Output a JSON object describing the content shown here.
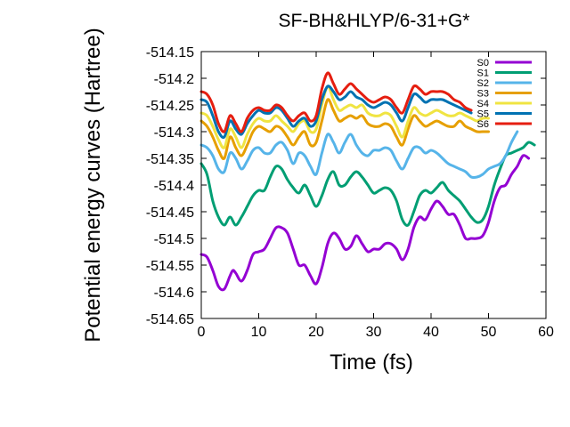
{
  "chart_data": {
    "type": "line",
    "title": "SF-BH&HLYP/6-31+G*",
    "xlabel": "Time (fs)",
    "ylabel": "Potential energy curves (Hartree)",
    "xlim": [
      0,
      60
    ],
    "ylim": [
      -514.65,
      -514.15
    ],
    "xticks": [
      "0",
      "10",
      "20",
      "30",
      "40",
      "50",
      "60"
    ],
    "yticks": [
      "-514.15",
      "-514.2",
      "-514.25",
      "-514.3",
      "-514.35",
      "-514.4",
      "-514.45",
      "-514.5",
      "-514.55",
      "-514.6",
      "-514.65"
    ],
    "legend_position": "top-right",
    "grid": false,
    "series": [
      {
        "name": "S0",
        "color": "#9400d3",
        "x": [
          0,
          1,
          2,
          3,
          4,
          5,
          5.5,
          6,
          7,
          8,
          9,
          10,
          11,
          12,
          13,
          14,
          15,
          16,
          17,
          18,
          19,
          20,
          21,
          22,
          23,
          24,
          25,
          26,
          27,
          28,
          29,
          30,
          31,
          32,
          33,
          34,
          35,
          36,
          37,
          38,
          39,
          40,
          41,
          42,
          43,
          44,
          45,
          46,
          47,
          48,
          49,
          50,
          51,
          52,
          53,
          54,
          55,
          56,
          57
        ],
        "y": [
          -514.53,
          -514.535,
          -514.56,
          -514.59,
          -514.595,
          -514.57,
          -514.56,
          -514.565,
          -514.58,
          -514.56,
          -514.53,
          -514.525,
          -514.52,
          -514.5,
          -514.48,
          -514.48,
          -514.49,
          -514.52,
          -514.55,
          -514.55,
          -514.57,
          -514.585,
          -514.555,
          -514.51,
          -514.49,
          -514.5,
          -514.52,
          -514.515,
          -514.495,
          -514.51,
          -514.525,
          -514.52,
          -514.52,
          -514.51,
          -514.51,
          -514.52,
          -514.54,
          -514.52,
          -514.48,
          -514.46,
          -514.465,
          -514.445,
          -514.43,
          -514.44,
          -514.455,
          -514.455,
          -514.475,
          -514.5,
          -514.5,
          -514.5,
          -514.495,
          -514.47,
          -514.43,
          -514.405,
          -514.4,
          -514.38,
          -514.365,
          -514.345,
          -514.35
        ]
      },
      {
        "name": "S1",
        "color": "#009e73",
        "x": [
          0,
          1,
          2,
          3,
          4,
          5,
          6,
          7,
          8,
          9,
          10,
          11,
          12,
          13,
          14,
          15,
          16,
          17,
          18,
          19,
          20,
          21,
          22,
          23,
          24,
          25,
          26,
          27,
          28,
          29,
          30,
          31,
          32,
          33,
          34,
          35,
          36,
          37,
          38,
          39,
          40,
          41,
          42,
          43,
          44,
          45,
          46,
          47,
          48,
          49,
          50,
          51,
          52,
          53,
          54,
          55,
          56,
          57,
          58
        ],
        "y": [
          -514.36,
          -514.38,
          -514.43,
          -514.46,
          -514.475,
          -514.46,
          -514.475,
          -514.46,
          -514.44,
          -514.42,
          -514.41,
          -514.41,
          -514.385,
          -514.365,
          -514.37,
          -514.39,
          -514.405,
          -514.415,
          -514.4,
          -514.42,
          -514.44,
          -514.42,
          -514.39,
          -514.375,
          -514.4,
          -514.4,
          -514.385,
          -514.375,
          -514.385,
          -514.4,
          -514.415,
          -514.41,
          -514.405,
          -514.41,
          -514.43,
          -514.465,
          -514.475,
          -514.45,
          -514.42,
          -514.41,
          -514.415,
          -514.405,
          -514.395,
          -514.41,
          -514.42,
          -514.43,
          -514.445,
          -514.46,
          -514.47,
          -514.465,
          -514.44,
          -514.4,
          -514.37,
          -514.345,
          -514.34,
          -514.335,
          -514.33,
          -514.32,
          -514.325
        ]
      },
      {
        "name": "S2",
        "color": "#56b4e9",
        "x": [
          0,
          1,
          2,
          3,
          4,
          5,
          6,
          7,
          8,
          9,
          10,
          11,
          12,
          13,
          14,
          15,
          16,
          17,
          18,
          19,
          20,
          21,
          22,
          23,
          24,
          25,
          26,
          27,
          28,
          29,
          30,
          31,
          32,
          33,
          34,
          35,
          36,
          37,
          38,
          39,
          40,
          41,
          42,
          43,
          44,
          45,
          46,
          47,
          48,
          49,
          50,
          51,
          52,
          53,
          54,
          55
        ],
        "y": [
          -514.325,
          -514.33,
          -514.345,
          -514.37,
          -514.375,
          -514.34,
          -514.35,
          -514.37,
          -514.355,
          -514.335,
          -514.33,
          -514.34,
          -514.34,
          -514.325,
          -514.32,
          -514.335,
          -514.36,
          -514.34,
          -514.345,
          -514.365,
          -514.38,
          -514.34,
          -514.305,
          -514.32,
          -514.34,
          -514.32,
          -514.305,
          -514.325,
          -514.34,
          -514.345,
          -514.335,
          -514.335,
          -514.33,
          -514.335,
          -514.355,
          -514.37,
          -514.35,
          -514.33,
          -514.33,
          -514.34,
          -514.335,
          -514.34,
          -514.35,
          -514.36,
          -514.365,
          -514.37,
          -514.375,
          -514.385,
          -514.385,
          -514.38,
          -514.37,
          -514.365,
          -514.36,
          -514.345,
          -514.32,
          -514.3
        ]
      },
      {
        "name": "S3",
        "color": "#e69f00",
        "x": [
          0,
          1,
          2,
          3,
          4,
          5,
          6,
          7,
          8,
          9,
          10,
          11,
          12,
          13,
          14,
          15,
          16,
          17,
          18,
          19,
          20,
          21,
          22,
          23,
          24,
          25,
          26,
          27,
          28,
          29,
          30,
          31,
          32,
          33,
          34,
          35,
          36,
          37,
          38,
          39,
          40,
          41,
          42,
          43,
          44,
          45,
          46,
          47,
          48,
          49,
          50
        ],
        "y": [
          -514.28,
          -514.29,
          -514.31,
          -514.335,
          -514.35,
          -514.31,
          -514.33,
          -514.345,
          -514.325,
          -514.3,
          -514.29,
          -514.295,
          -514.3,
          -514.29,
          -514.295,
          -514.31,
          -514.325,
          -514.31,
          -514.3,
          -514.325,
          -514.32,
          -514.28,
          -514.24,
          -514.26,
          -514.28,
          -514.275,
          -514.27,
          -514.275,
          -514.27,
          -514.285,
          -514.29,
          -514.29,
          -514.285,
          -514.29,
          -514.31,
          -514.325,
          -514.295,
          -514.27,
          -514.28,
          -514.29,
          -514.285,
          -514.28,
          -514.285,
          -514.29,
          -514.29,
          -514.28,
          -514.29,
          -514.295,
          -514.3,
          -514.3,
          -514.3
        ]
      },
      {
        "name": "S4",
        "color": "#f0e442",
        "x": [
          0,
          1,
          2,
          3,
          4,
          5,
          6,
          7,
          8,
          9,
          10,
          11,
          12,
          13,
          14,
          15,
          16,
          17,
          18,
          19,
          20,
          21,
          22,
          23,
          24,
          25,
          26,
          27,
          28,
          29,
          30,
          31,
          32,
          33,
          34,
          35,
          36,
          37,
          38,
          39,
          40,
          41,
          42,
          43,
          44,
          45,
          46,
          47,
          48,
          49,
          50
        ],
        "y": [
          -514.265,
          -514.27,
          -514.29,
          -514.315,
          -514.33,
          -514.295,
          -514.31,
          -514.33,
          -514.305,
          -514.285,
          -514.275,
          -514.28,
          -514.28,
          -514.27,
          -514.28,
          -514.29,
          -514.3,
          -514.285,
          -514.28,
          -514.3,
          -514.295,
          -514.25,
          -514.215,
          -514.24,
          -514.26,
          -514.255,
          -514.25,
          -514.255,
          -514.25,
          -514.265,
          -514.27,
          -514.27,
          -514.265,
          -514.27,
          -514.29,
          -514.31,
          -514.28,
          -514.255,
          -514.265,
          -514.27,
          -514.265,
          -514.26,
          -514.265,
          -514.27,
          -514.27,
          -514.265,
          -514.27,
          -514.275,
          -514.28,
          -514.275,
          -514.275
        ]
      },
      {
        "name": "S5",
        "color": "#0072b2",
        "x": [
          0,
          1,
          2,
          3,
          4,
          5,
          6,
          7,
          8,
          9,
          10,
          11,
          12,
          13,
          14,
          15,
          16,
          17,
          18,
          19,
          20,
          21,
          22,
          23,
          24,
          25,
          26,
          27,
          28,
          29,
          30,
          31,
          32,
          33,
          34,
          35,
          36,
          37,
          38,
          39,
          40,
          41,
          42,
          43,
          44,
          45,
          46,
          47
        ],
        "y": [
          -514.24,
          -514.245,
          -514.27,
          -514.3,
          -514.31,
          -514.28,
          -514.295,
          -514.305,
          -514.285,
          -514.27,
          -514.26,
          -514.265,
          -514.265,
          -514.255,
          -514.26,
          -514.275,
          -514.29,
          -514.28,
          -514.275,
          -514.29,
          -514.28,
          -514.24,
          -514.215,
          -514.225,
          -514.24,
          -514.235,
          -514.225,
          -514.235,
          -514.24,
          -514.25,
          -514.255,
          -514.25,
          -514.245,
          -514.25,
          -514.265,
          -514.28,
          -514.255,
          -514.23,
          -514.235,
          -514.245,
          -514.24,
          -514.24,
          -514.24,
          -514.245,
          -514.25,
          -514.255,
          -514.26,
          -514.265
        ]
      },
      {
        "name": "S6",
        "color": "#e51e10",
        "x": [
          0,
          1,
          2,
          3,
          4,
          5,
          6,
          7,
          8,
          9,
          10,
          11,
          12,
          13,
          14,
          15,
          16,
          17,
          18,
          19,
          20,
          21,
          22,
          23,
          24,
          25,
          26,
          27,
          28,
          29,
          30,
          31,
          32,
          33,
          34,
          35,
          36,
          37,
          38,
          39,
          40,
          41,
          42,
          43,
          44,
          45,
          46,
          47
        ],
        "y": [
          -514.225,
          -514.23,
          -514.25,
          -514.285,
          -514.3,
          -514.27,
          -514.285,
          -514.3,
          -514.275,
          -514.26,
          -514.255,
          -514.26,
          -514.26,
          -514.25,
          -514.255,
          -514.27,
          -514.28,
          -514.27,
          -514.265,
          -514.28,
          -514.27,
          -514.22,
          -514.19,
          -514.21,
          -514.23,
          -514.22,
          -514.21,
          -514.22,
          -514.23,
          -514.24,
          -514.245,
          -514.24,
          -514.235,
          -514.24,
          -514.255,
          -514.265,
          -514.24,
          -514.215,
          -514.22,
          -514.23,
          -514.225,
          -514.225,
          -514.225,
          -514.23,
          -514.24,
          -514.245,
          -514.255,
          -514.26
        ]
      }
    ]
  }
}
